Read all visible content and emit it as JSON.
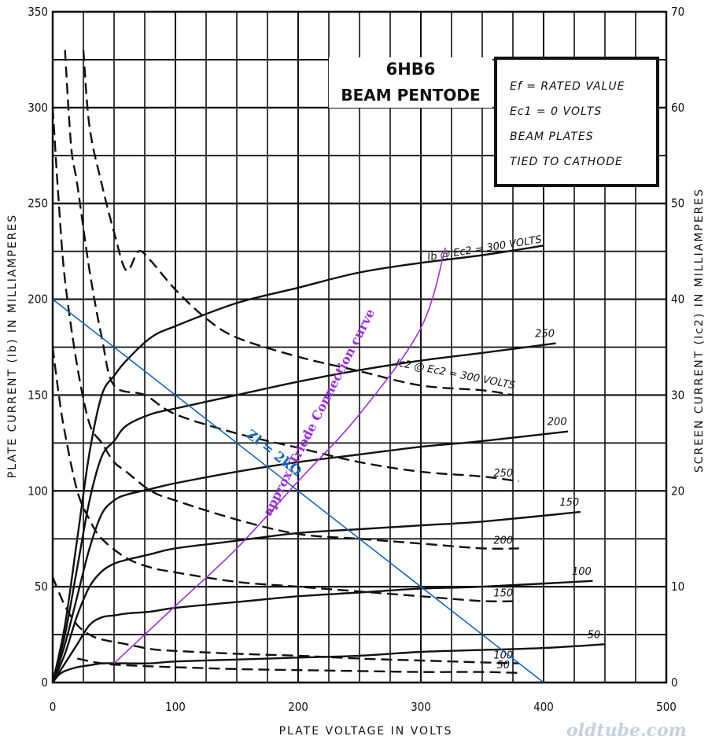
{
  "chart_data": {
    "type": "line",
    "title": "6HB6",
    "subtitle": "BEAM PENTODE",
    "conditions": [
      "Ef = RATED VALUE",
      "Ec1 = 0 VOLTS",
      "BEAM PLATES",
      "TIED TO CATHODE"
    ],
    "xlabel": "PLATE VOLTAGE IN VOLTS",
    "ylabel_left": "PLATE CURRENT (Ib) IN MILLIAMPERES",
    "ylabel_right": "SCREEN CURRENT (Ic2) IN MILLIAMPERES",
    "xlim": [
      0,
      500
    ],
    "ylim_left": [
      0,
      350
    ],
    "ylim_right": [
      0,
      70
    ],
    "x_ticks": [
      "0",
      "100",
      "200",
      "300",
      "400",
      "500"
    ],
    "y_ticks_left": [
      "350",
      "300",
      "250",
      "200",
      "150",
      "100",
      "50",
      "0"
    ],
    "y_ticks_right": [
      "70",
      "60",
      "50",
      "40",
      "30",
      "20",
      "10",
      "0"
    ],
    "grid": true,
    "plate_curves": [
      {
        "label": "Ib @ Ec2 = 300 VOLTS",
        "points": [
          [
            0,
            0
          ],
          [
            10,
            30
          ],
          [
            20,
            75
          ],
          [
            30,
            120
          ],
          [
            40,
            150
          ],
          [
            50,
            160
          ],
          [
            60,
            168
          ],
          [
            80,
            180
          ],
          [
            100,
            186
          ],
          [
            150,
            198
          ],
          [
            200,
            206
          ],
          [
            250,
            214
          ],
          [
            300,
            219
          ],
          [
            350,
            223
          ],
          [
            400,
            228
          ]
        ]
      },
      {
        "label": "250",
        "points": [
          [
            0,
            0
          ],
          [
            10,
            25
          ],
          [
            20,
            60
          ],
          [
            30,
            95
          ],
          [
            40,
            118
          ],
          [
            50,
            126
          ],
          [
            60,
            134
          ],
          [
            80,
            140
          ],
          [
            100,
            143
          ],
          [
            150,
            150
          ],
          [
            200,
            157
          ],
          [
            250,
            163
          ],
          [
            300,
            168
          ],
          [
            350,
            172
          ],
          [
            410,
            177
          ]
        ]
      },
      {
        "label": "200",
        "points": [
          [
            0,
            0
          ],
          [
            10,
            20
          ],
          [
            20,
            45
          ],
          [
            30,
            70
          ],
          [
            40,
            88
          ],
          [
            50,
            95
          ],
          [
            60,
            98
          ],
          [
            80,
            101
          ],
          [
            100,
            104
          ],
          [
            150,
            110
          ],
          [
            200,
            115
          ],
          [
            250,
            119
          ],
          [
            300,
            123
          ],
          [
            350,
            126
          ],
          [
            420,
            131
          ]
        ]
      },
      {
        "label": "150",
        "points": [
          [
            0,
            0
          ],
          [
            10,
            15
          ],
          [
            20,
            35
          ],
          [
            30,
            50
          ],
          [
            40,
            58
          ],
          [
            50,
            62
          ],
          [
            60,
            64
          ],
          [
            80,
            67
          ],
          [
            100,
            70
          ],
          [
            150,
            74
          ],
          [
            200,
            78
          ],
          [
            250,
            80
          ],
          [
            300,
            82
          ],
          [
            350,
            84
          ],
          [
            430,
            89
          ]
        ]
      },
      {
        "label": "100",
        "points": [
          [
            0,
            0
          ],
          [
            10,
            10
          ],
          [
            20,
            20
          ],
          [
            30,
            30
          ],
          [
            40,
            34
          ],
          [
            50,
            35
          ],
          [
            60,
            36
          ],
          [
            80,
            37
          ],
          [
            100,
            39
          ],
          [
            150,
            42
          ],
          [
            200,
            45
          ],
          [
            250,
            47
          ],
          [
            300,
            49
          ],
          [
            350,
            50
          ],
          [
            440,
            53
          ]
        ]
      },
      {
        "label": "50",
        "points": [
          [
            0,
            0
          ],
          [
            5,
            4
          ],
          [
            10,
            6
          ],
          [
            20,
            8
          ],
          [
            30,
            9
          ],
          [
            40,
            10
          ],
          [
            50,
            10
          ],
          [
            60,
            10
          ],
          [
            80,
            10
          ],
          [
            100,
            11
          ],
          [
            150,
            12
          ],
          [
            200,
            13
          ],
          [
            250,
            14
          ],
          [
            300,
            16
          ],
          [
            350,
            17
          ],
          [
            400,
            18
          ],
          [
            450,
            20
          ]
        ]
      }
    ],
    "screen_curves": [
      {
        "label": "Ic2 @ Ec2 = 300 VOLTS",
        "points": [
          [
            25,
            66
          ],
          [
            30,
            58
          ],
          [
            40,
            52
          ],
          [
            50,
            47
          ],
          [
            60,
            43
          ],
          [
            70,
            45
          ],
          [
            80,
            44
          ],
          [
            100,
            41
          ],
          [
            125,
            38
          ],
          [
            150,
            36
          ],
          [
            200,
            34
          ],
          [
            250,
            32.5
          ],
          [
            300,
            31
          ],
          [
            350,
            30.5
          ],
          [
            375,
            30
          ]
        ]
      },
      {
        "label": "250",
        "points": [
          [
            10,
            66
          ],
          [
            15,
            56
          ],
          [
            20,
            52
          ],
          [
            30,
            43
          ],
          [
            40,
            36
          ],
          [
            50,
            31
          ],
          [
            75,
            30
          ],
          [
            100,
            28
          ],
          [
            150,
            26
          ],
          [
            200,
            24.5
          ],
          [
            250,
            23
          ],
          [
            300,
            22
          ],
          [
            350,
            21.5
          ],
          [
            380,
            21
          ]
        ]
      },
      {
        "label": "200",
        "points": [
          [
            0,
            60
          ],
          [
            5,
            50
          ],
          [
            10,
            42
          ],
          [
            20,
            33
          ],
          [
            30,
            27
          ],
          [
            40,
            25
          ],
          [
            50,
            23
          ],
          [
            60,
            22
          ],
          [
            80,
            20
          ],
          [
            100,
            19
          ],
          [
            150,
            17
          ],
          [
            200,
            15.5
          ],
          [
            250,
            15
          ],
          [
            300,
            14.5
          ],
          [
            350,
            14
          ],
          [
            380,
            14
          ]
        ]
      },
      {
        "label": "150",
        "points": [
          [
            0,
            35
          ],
          [
            5,
            30
          ],
          [
            10,
            26
          ],
          [
            20,
            20
          ],
          [
            30,
            17
          ],
          [
            40,
            15
          ],
          [
            60,
            13
          ],
          [
            80,
            12
          ],
          [
            100,
            11.5
          ],
          [
            150,
            10.5
          ],
          [
            200,
            10
          ],
          [
            250,
            9.5
          ],
          [
            300,
            9
          ],
          [
            350,
            8.5
          ],
          [
            380,
            8.5
          ]
        ]
      },
      {
        "label": "100",
        "points": [
          [
            0,
            11
          ],
          [
            10,
            8
          ],
          [
            20,
            6
          ],
          [
            30,
            5
          ],
          [
            40,
            4.5
          ],
          [
            60,
            4
          ],
          [
            80,
            3.5
          ],
          [
            100,
            3.3
          ],
          [
            150,
            3
          ],
          [
            200,
            2.8
          ],
          [
            250,
            2.5
          ],
          [
            300,
            2.3
          ],
          [
            350,
            2.1
          ],
          [
            380,
            2
          ]
        ]
      },
      {
        "label": "50",
        "points": [
          [
            20,
            2.5
          ],
          [
            40,
            2
          ],
          [
            60,
            1.8
          ],
          [
            100,
            1.6
          ],
          [
            150,
            1.4
          ],
          [
            200,
            1.3
          ],
          [
            250,
            1.2
          ],
          [
            300,
            1.1
          ],
          [
            350,
            1.1
          ],
          [
            380,
            1
          ]
        ]
      }
    ],
    "annotations": [
      {
        "label": "Zl = 2kΩ",
        "color": "#1565c0",
        "points": [
          [
            0,
            200
          ],
          [
            400,
            0
          ]
        ]
      },
      {
        "label": "approx. Triode Connection curve",
        "color": "#9b30d9",
        "points": [
          [
            50,
            10
          ],
          [
            100,
            40
          ],
          [
            150,
            70
          ],
          [
            200,
            105
          ],
          [
            250,
            140
          ],
          [
            300,
            185
          ],
          [
            320,
            227
          ]
        ]
      }
    ]
  },
  "watermark": "oldtube.com",
  "colors": {
    "ink": "#111111",
    "loadline": "#1565c0",
    "triode": "#9b30d9"
  }
}
